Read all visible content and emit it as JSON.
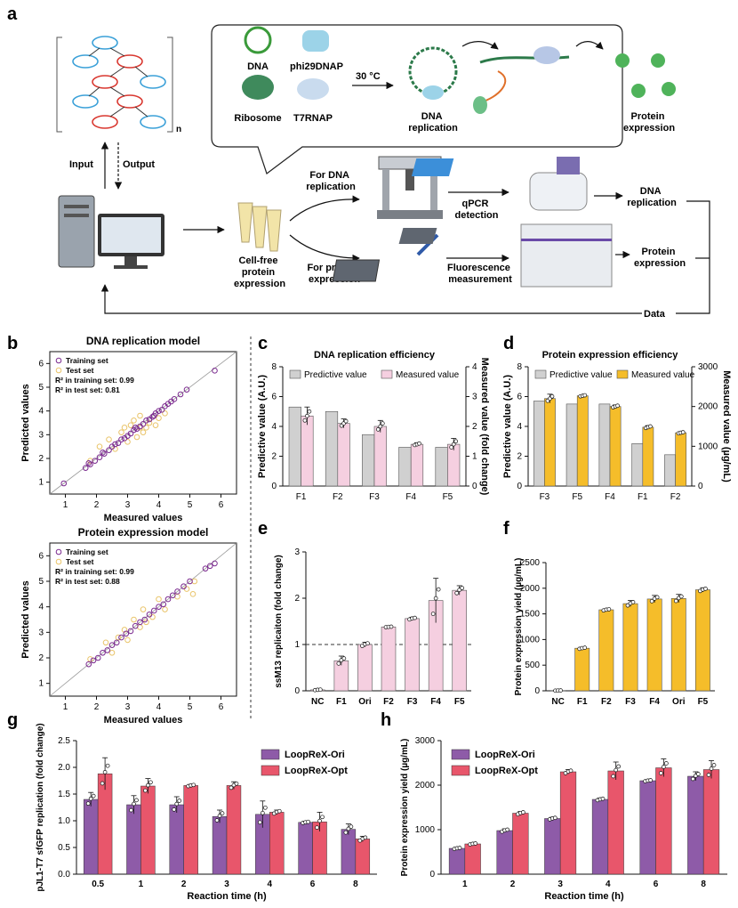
{
  "panel_letters": {
    "a": "a",
    "b": "b",
    "c": "c",
    "d": "d",
    "e": "e",
    "f": "f",
    "g": "g",
    "h": "h"
  },
  "workflow": {
    "subscript_n": "n",
    "input": "Input",
    "output": "Output",
    "reagents": {
      "dna": "DNA",
      "phi29": "phi29DNAP",
      "ribosome": "Ribosome",
      "t7": "T7RNAP"
    },
    "temperature": "30 °C",
    "dna_replication": "DNA\nreplication",
    "protein_expression": "Protein\nexpression",
    "cell_free": "Cell-free\nprotein\nexpression",
    "for_dna": "For DNA\nreplication",
    "for_protein": "For protein\nexpression",
    "qpcr": "qPCR\ndetection",
    "fluorescence": "Fluorescence\nmeasurement",
    "out_dna": "DNA\nreplication",
    "out_protein": "Protein\nexpression",
    "data": "Data"
  },
  "colors": {
    "grey_bar": "#d0d0d0",
    "pink_bar": "#f5cfe0",
    "yellow_bar": "#f5bd2a",
    "purple": "#8e5ba8",
    "red": "#e8566b",
    "scatter_train": "#7b2a8f",
    "scatter_test": "#e9c46a"
  },
  "chart_data": [
    {
      "id": "b1",
      "type": "scatter",
      "title": "DNA replication model",
      "xlabel": "Measured values",
      "ylabel": "Predicted values",
      "xlim": [
        0.5,
        6.5
      ],
      "ylim": [
        0.5,
        6.5
      ],
      "ticks": [
        1,
        2,
        3,
        4,
        5,
        6
      ],
      "legend": [
        "Training set",
        "Test set"
      ],
      "annotations": [
        "R² in training set: 0.99",
        "R² in test set: 0.81"
      ],
      "series": [
        {
          "name": "Training set",
          "points": [
            [
              0.95,
              0.95
            ],
            [
              1.65,
              1.6
            ],
            [
              1.8,
              1.75
            ],
            [
              1.95,
              1.9
            ],
            [
              2.1,
              2.05
            ],
            [
              2.25,
              2.2
            ],
            [
              2.4,
              2.35
            ],
            [
              2.5,
              2.5
            ],
            [
              2.6,
              2.6
            ],
            [
              2.7,
              2.65
            ],
            [
              2.8,
              2.8
            ],
            [
              2.9,
              2.85
            ],
            [
              3.0,
              2.95
            ],
            [
              3.1,
              3.05
            ],
            [
              3.2,
              3.2
            ],
            [
              3.3,
              3.25
            ],
            [
              3.4,
              3.35
            ],
            [
              3.5,
              3.45
            ],
            [
              3.6,
              3.6
            ],
            [
              3.7,
              3.65
            ],
            [
              3.8,
              3.75
            ],
            [
              3.9,
              3.9
            ],
            [
              4.0,
              4.0
            ],
            [
              4.1,
              4.05
            ],
            [
              4.2,
              4.2
            ],
            [
              4.3,
              4.3
            ],
            [
              4.4,
              4.4
            ],
            [
              4.5,
              4.5
            ],
            [
              4.7,
              4.7
            ],
            [
              4.9,
              4.9
            ],
            [
              5.8,
              5.7
            ],
            [
              1.75,
              1.8
            ],
            [
              2.2,
              2.25
            ],
            [
              3.25,
              3.3
            ],
            [
              3.85,
              3.8
            ]
          ]
        },
        {
          "name": "Test set",
          "points": [
            [
              1.8,
              1.9
            ],
            [
              2.1,
              2.5
            ],
            [
              2.4,
              2.8
            ],
            [
              2.6,
              2.4
            ],
            [
              2.8,
              3.1
            ],
            [
              3.0,
              2.7
            ],
            [
              3.1,
              3.4
            ],
            [
              3.2,
              3.6
            ],
            [
              3.3,
              2.9
            ],
            [
              3.4,
              3.8
            ],
            [
              3.5,
              3.1
            ],
            [
              3.6,
              3.3
            ],
            [
              3.7,
              3.5
            ],
            [
              3.9,
              3.4
            ],
            [
              4.0,
              3.7
            ],
            [
              4.2,
              3.9
            ],
            [
              3.4,
              3.3
            ],
            [
              2.9,
              3.3
            ]
          ]
        }
      ]
    },
    {
      "id": "b2",
      "type": "scatter",
      "title": "Protein expression model",
      "xlabel": "Measured values",
      "ylabel": "Predicted values",
      "xlim": [
        0.5,
        6.5
      ],
      "ylim": [
        0.5,
        6.5
      ],
      "ticks": [
        1,
        2,
        3,
        4,
        5,
        6
      ],
      "legend": [
        "Training set",
        "Test set"
      ],
      "annotations": [
        "R² in training set: 0.99",
        "R² in test set: 0.88"
      ],
      "series": [
        {
          "name": "Training set",
          "points": [
            [
              1.75,
              1.75
            ],
            [
              1.9,
              1.9
            ],
            [
              2.05,
              2.0
            ],
            [
              2.2,
              2.2
            ],
            [
              2.35,
              2.3
            ],
            [
              2.5,
              2.5
            ],
            [
              2.65,
              2.6
            ],
            [
              2.8,
              2.8
            ],
            [
              2.95,
              2.95
            ],
            [
              3.1,
              3.05
            ],
            [
              3.25,
              3.25
            ],
            [
              3.4,
              3.4
            ],
            [
              3.55,
              3.5
            ],
            [
              3.7,
              3.7
            ],
            [
              3.85,
              3.85
            ],
            [
              4.0,
              4.0
            ],
            [
              4.15,
              4.1
            ],
            [
              4.3,
              4.3
            ],
            [
              4.45,
              4.45
            ],
            [
              4.6,
              4.6
            ],
            [
              4.8,
              4.8
            ],
            [
              5.0,
              5.0
            ],
            [
              5.5,
              5.5
            ],
            [
              5.65,
              5.6
            ],
            [
              5.8,
              5.7
            ]
          ]
        },
        {
          "name": "Test set",
          "points": [
            [
              1.8,
              1.95
            ],
            [
              2.3,
              2.6
            ],
            [
              2.5,
              2.2
            ],
            [
              2.7,
              2.8
            ],
            [
              2.9,
              3.1
            ],
            [
              3.0,
              2.7
            ],
            [
              3.2,
              3.5
            ],
            [
              3.4,
              3.2
            ],
            [
              3.5,
              3.9
            ],
            [
              3.6,
              3.4
            ],
            [
              3.8,
              3.6
            ],
            [
              4.0,
              4.3
            ],
            [
              4.2,
              3.9
            ],
            [
              4.6,
              4.4
            ],
            [
              4.9,
              4.7
            ],
            [
              5.1,
              4.5
            ],
            [
              5.15,
              5.0
            ]
          ]
        }
      ]
    },
    {
      "id": "c",
      "type": "bar",
      "title": "DNA replication efficiency",
      "categories": [
        "F1",
        "F2",
        "F3",
        "F4",
        "F5"
      ],
      "ylabel": "Predictive value (A.U.)",
      "y2label": "Measured value (fold change)",
      "ylim": [
        0,
        8
      ],
      "y2lim": [
        0,
        4
      ],
      "yticks": [
        0,
        2,
        4,
        6,
        8
      ],
      "y2ticks": [
        0,
        1,
        2,
        3,
        4
      ],
      "legend": [
        "Predictive value",
        "Measured value"
      ],
      "series": [
        {
          "name": "Predictive value",
          "axis": "left",
          "values": [
            5.3,
            5.0,
            3.45,
            2.6,
            2.6
          ]
        },
        {
          "name": "Measured value",
          "axis": "right",
          "values": [
            2.35,
            2.1,
            2.0,
            1.4,
            1.4
          ],
          "err": [
            0.3,
            0.15,
            0.2,
            0.05,
            0.2
          ]
        }
      ]
    },
    {
      "id": "d",
      "type": "bar",
      "title": "Protein expression efficiency",
      "categories": [
        "F3",
        "F5",
        "F4",
        "F1",
        "F2"
      ],
      "ylabel": "Predictive value (A.U.)",
      "y2label": "Measured value (µg/mL)",
      "ylim": [
        0,
        8
      ],
      "y2lim": [
        0,
        3000
      ],
      "yticks": [
        0,
        2,
        4,
        6,
        8
      ],
      "y2ticks": [
        0,
        1000,
        2000,
        3000
      ],
      "legend": [
        "Predictive value",
        "Measured value"
      ],
      "series": [
        {
          "name": "Predictive value",
          "axis": "left",
          "values": [
            5.7,
            5.5,
            5.5,
            2.85,
            2.1
          ]
        },
        {
          "name": "Measured value",
          "axis": "right",
          "values": [
            2200,
            2270,
            2000,
            1480,
            1340
          ],
          "err": [
            110,
            25,
            40,
            40,
            25
          ]
        }
      ]
    },
    {
      "id": "e",
      "type": "bar",
      "categories": [
        "NC",
        "F1",
        "Ori",
        "F2",
        "F3",
        "F4",
        "F5"
      ],
      "ylabel": "ssM13 replicaiton (fold change)",
      "ylim": [
        0,
        3
      ],
      "yticks": [
        0,
        1,
        2,
        3
      ],
      "reference_line": 1,
      "values": [
        0.02,
        0.65,
        1.0,
        1.38,
        1.56,
        1.95,
        2.17
      ],
      "err": [
        0.01,
        0.1,
        0.05,
        0.01,
        0.03,
        0.48,
        0.1
      ]
    },
    {
      "id": "f",
      "type": "bar",
      "categories": [
        "NC",
        "F1",
        "F2",
        "F3",
        "F4",
        "Ori",
        "F5"
      ],
      "ylabel": "Protein expression yield (µg/mL)",
      "ylim": [
        0,
        2500
      ],
      "yticks": [
        0,
        500,
        1000,
        1500,
        2000,
        2500
      ],
      "values": [
        5,
        830,
        1580,
        1700,
        1790,
        1800,
        1970
      ],
      "err": [
        3,
        20,
        20,
        60,
        70,
        80,
        40
      ]
    },
    {
      "id": "g",
      "type": "bar",
      "categories": [
        "0.5",
        "1",
        "2",
        "3",
        "4",
        "6",
        "8"
      ],
      "xlabel": "Reaction time (h)",
      "ylabel": "pJL1-T7 sfGFP replication (fold change)",
      "ylim": [
        0,
        2.5
      ],
      "yticks": [
        0,
        0.5,
        1.0,
        1.5,
        2.0,
        2.5
      ],
      "series": [
        {
          "name": "LoopReX-Ori",
          "values": [
            1.4,
            1.3,
            1.3,
            1.08,
            1.12,
            0.97,
            0.84
          ],
          "err": [
            0.13,
            0.17,
            0.15,
            0.12,
            0.25,
            0.02,
            0.1
          ]
        },
        {
          "name": "LoopReX-Opt",
          "values": [
            1.88,
            1.65,
            1.66,
            1.66,
            1.16,
            0.98,
            0.66
          ],
          "err": [
            0.3,
            0.14,
            0.02,
            0.07,
            0.04,
            0.18,
            0.05
          ]
        }
      ]
    },
    {
      "id": "h",
      "type": "bar",
      "categories": [
        "1",
        "2",
        "3",
        "4",
        "6",
        "8"
      ],
      "xlabel": "Reaction time (h)",
      "ylabel": "Protein expression yield (µg/mL)",
      "ylim": [
        0,
        3000
      ],
      "yticks": [
        0,
        1000,
        2000,
        3000
      ],
      "series": [
        {
          "name": "LoopReX-Ori",
          "values": [
            580,
            980,
            1250,
            1680,
            2100,
            2200
          ],
          "err": [
            20,
            40,
            30,
            30,
            20,
            100
          ]
        },
        {
          "name": "LoopReX-Opt",
          "values": [
            680,
            1370,
            2300,
            2320,
            2390,
            2350
          ],
          "err": [
            20,
            40,
            50,
            200,
            200,
            200
          ]
        }
      ]
    }
  ]
}
